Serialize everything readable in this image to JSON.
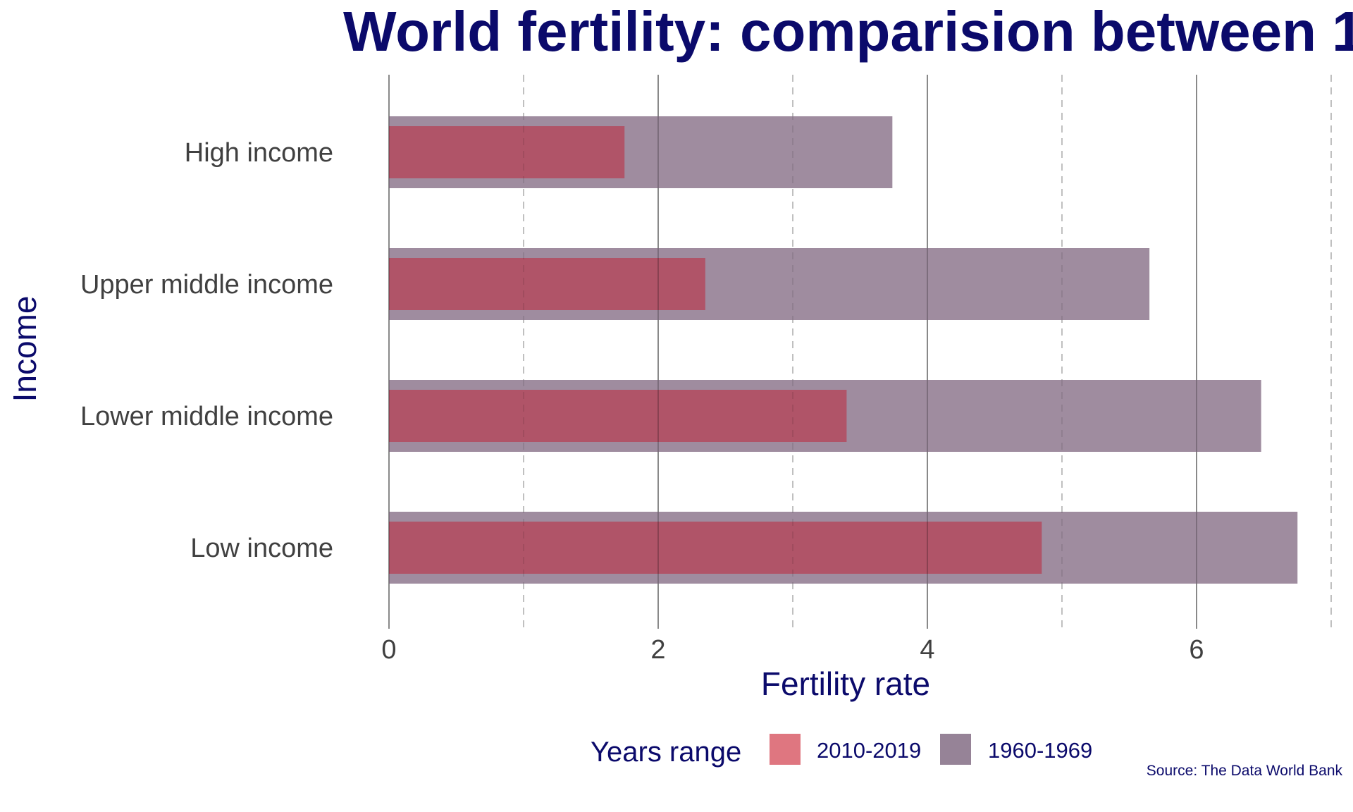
{
  "chart_data": {
    "type": "bar",
    "orientation": "horizontal",
    "title": "World fertility: comparision between 1",
    "xlabel": "Fertility rate",
    "ylabel": "Income",
    "categories": [
      "High income",
      "Upper middle income",
      "Lower middle income",
      "Low income"
    ],
    "series": [
      {
        "name": "1960-1969",
        "color": "#9f8c9f",
        "values": [
          3.74,
          5.65,
          6.48,
          6.75
        ]
      },
      {
        "name": "2010-2019",
        "color": "#b05468",
        "values": [
          1.75,
          2.35,
          3.4,
          4.85
        ]
      }
    ],
    "xlim": [
      0,
      7
    ],
    "x_ticks": [
      0,
      2,
      4,
      6
    ],
    "x_tick_labels": [
      "0",
      "2",
      "4",
      "6"
    ],
    "major_grid": "solid",
    "minor_grid": "dashed",
    "legend": {
      "title": "Years range",
      "position": "bottom",
      "entries": [
        {
          "label": "2010-2019",
          "color": "#df7680"
        },
        {
          "label": "1960-1969",
          "color": "#968397"
        }
      ]
    },
    "caption": "Source: The Data World Bank"
  }
}
